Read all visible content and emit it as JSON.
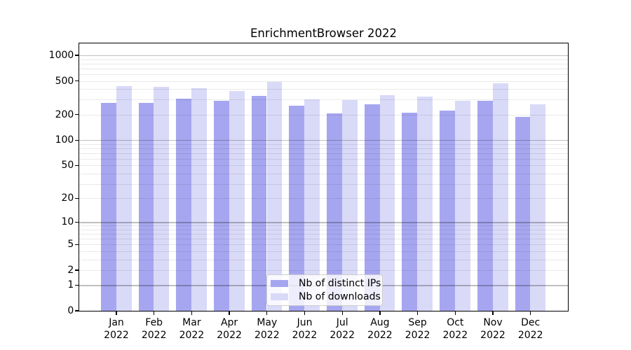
{
  "title": "EnrichmentBrowser 2022",
  "year": "2022",
  "legend": {
    "items": [
      {
        "label": "Nb of distinct IPs",
        "color": "#a6a6f0"
      },
      {
        "label": "Nb of downloads",
        "color": "#d9d9f8"
      }
    ]
  },
  "y_axis": {
    "tick_labels": [
      "0",
      "1",
      "2",
      "5",
      "10",
      "20",
      "50",
      "100",
      "200",
      "500",
      "1000"
    ],
    "tick_values": [
      0,
      1,
      2,
      5,
      10,
      20,
      50,
      100,
      200,
      500,
      1000
    ]
  },
  "x_axis": {
    "months": [
      "Jan",
      "Feb",
      "Mar",
      "Apr",
      "May",
      "Jun",
      "Jul",
      "Aug",
      "Sep",
      "Oct",
      "Nov",
      "Dec"
    ]
  },
  "chart_data": {
    "type": "bar",
    "title": "EnrichmentBrowser 2022",
    "categories": [
      "Jan 2022",
      "Feb 2022",
      "Mar 2022",
      "Apr 2022",
      "May 2022",
      "Jun 2022",
      "Jul 2022",
      "Aug 2022",
      "Sep 2022",
      "Oct 2022",
      "Nov 2022",
      "Dec 2022"
    ],
    "series": [
      {
        "name": "Nb of distinct IPs",
        "color": "#a6a6f0",
        "values": [
          277,
          276,
          311,
          290,
          335,
          257,
          209,
          266,
          213,
          222,
          289,
          190
        ]
      },
      {
        "name": "Nb of downloads",
        "color": "#d9d9f8",
        "values": [
          437,
          430,
          407,
          377,
          485,
          303,
          299,
          340,
          325,
          290,
          470,
          264
        ]
      }
    ],
    "xlabel": "",
    "ylabel": "",
    "yscale": "log1p",
    "yticks": [
      0,
      1,
      2,
      5,
      10,
      20,
      50,
      100,
      200,
      500,
      1000
    ],
    "ylim": [
      0,
      1380
    ],
    "grid": "minor light gray + major gray at decades, drawn over bars",
    "legend_position": "inside bottom-center-left"
  }
}
